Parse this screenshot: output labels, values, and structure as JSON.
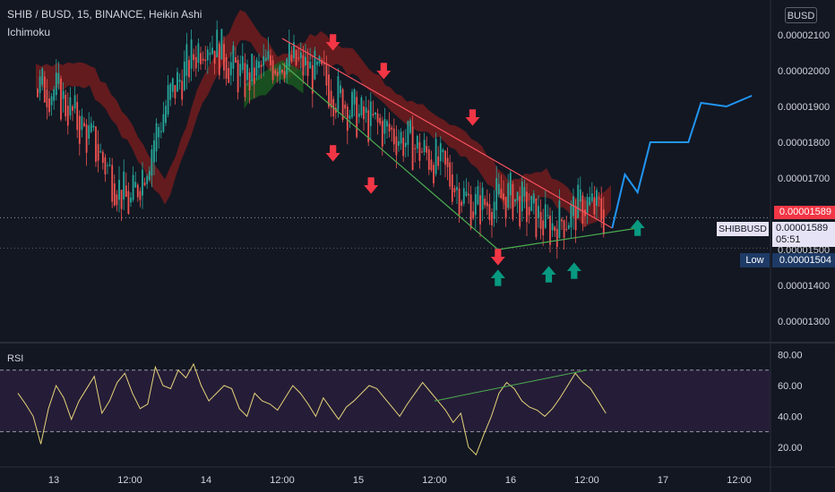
{
  "header": {
    "symbol_line": "SHIB / BUSD, 15, BINANCE, Heikin Ashi",
    "indicator": "Ichimoku",
    "currency_button": "BUSD",
    "rsi_label": "RSI"
  },
  "price_tags": {
    "current_red": "0.00001589",
    "symbol": "SHIBBUSD",
    "last": "0.00001589",
    "countdown": "05:51",
    "low_label": "Low",
    "low_value": "0.00001504"
  },
  "chart_data": [
    {
      "type": "line",
      "subtype": "heikin-ashi-candlestick",
      "y_axis_labels": [
        "0.00002100",
        "0.00002000",
        "0.00001900",
        "0.00001800",
        "0.00001700",
        "0.00001600",
        "0.00001500",
        "0.00001400",
        "0.00001300"
      ],
      "x_axis_labels": [
        "13",
        "12:00",
        "14",
        "12:00",
        "15",
        "12:00",
        "16",
        "12:00",
        "17",
        "12:00"
      ],
      "ylim": [
        1.28e-05,
        2.16e-05
      ],
      "current_price": 1.589e-05,
      "low_price": 1.504e-05,
      "price_path": [
        [
          "13 00:00",
          1.95e-05
        ],
        [
          "13 06:00",
          1.8e-05
        ],
        [
          "13 12:00",
          1.62e-05
        ],
        [
          "13 18:00",
          1.92e-05
        ],
        [
          "14 00:00",
          2.1e-05
        ],
        [
          "14 06:00",
          1.97e-05
        ],
        [
          "14 12:00",
          2.04e-05
        ],
        [
          "14 18:00",
          1.98e-05
        ],
        [
          "15 00:00",
          1.87e-05
        ],
        [
          "15 06:00",
          1.82e-05
        ],
        [
          "15 12:00",
          1.75e-05
        ],
        [
          "15 18:00",
          1.62e-05
        ],
        [
          "16 00:00",
          1.65e-05
        ],
        [
          "16 06:00",
          1.56e-05
        ],
        [
          "16 12:00",
          1.63e-05
        ],
        [
          "16 15:00",
          1.59e-05
        ]
      ],
      "projection_path": [
        [
          "16 16:00",
          1.56e-05
        ],
        [
          "16 18:00",
          1.71e-05
        ],
        [
          "16 20:00",
          1.66e-05
        ],
        [
          "16 22:00",
          1.8e-05
        ],
        [
          "17 04:00",
          1.8e-05
        ],
        [
          "17 06:00",
          1.91e-05
        ],
        [
          "17 10:00",
          1.9e-05
        ],
        [
          "17 14:00",
          1.93e-05
        ]
      ],
      "trendlines": [
        {
          "name": "upper",
          "color": "#f7525f",
          "from": [
            "14 12:00",
            2.09e-05
          ],
          "to": [
            "16 16:00",
            1.56e-05
          ]
        },
        {
          "name": "lower",
          "color": "#4caf50",
          "from": [
            "14 12:00",
            2.02e-05
          ],
          "to": [
            "15 22:00",
            1.5e-05
          ]
        },
        {
          "name": "support",
          "color": "#4caf50",
          "from": [
            "15 22:00",
            1.5e-05
          ],
          "to": [
            "16 20:00",
            1.56e-05
          ]
        }
      ],
      "down_arrows": [
        [
          "14 20:00",
          2.08e-05
        ],
        [
          "15 04:00",
          2e-05
        ],
        [
          "15 18:00",
          1.87e-05
        ],
        [
          "14 20:00",
          1.77e-05
        ],
        [
          "15 02:00",
          1.68e-05
        ],
        [
          "15 22:00",
          1.48e-05
        ]
      ],
      "up_arrows": [
        [
          "15 22:00",
          1.42e-05
        ],
        [
          "16 06:00",
          1.43e-05
        ],
        [
          "16 10:00",
          1.44e-05
        ],
        [
          "16 20:00",
          1.56e-05
        ]
      ],
      "colors": {
        "bull": "#26a69a",
        "bear": "#ef5350",
        "cloud_bear": "#7f1d1d",
        "cloud_bull": "#1b5e20",
        "projection": "#2196f3",
        "down_arrow": "#f23645",
        "up_arrow": "#089981"
      }
    },
    {
      "type": "line",
      "name": "RSI",
      "ylim": [
        10,
        85
      ],
      "y_axis_labels": [
        "80.00",
        "60.00",
        "40.00",
        "20.00"
      ],
      "bands": [
        30,
        70
      ],
      "divergence_line": {
        "from": [
          "15 12:00",
          50
        ],
        "to": [
          "16 12:00",
          70
        ]
      },
      "values": [
        55,
        48,
        40,
        22,
        45,
        60,
        52,
        38,
        50,
        58,
        66,
        42,
        50,
        62,
        68,
        55,
        45,
        48,
        72,
        60,
        58,
        70,
        65,
        74,
        60,
        50,
        55,
        60,
        58,
        45,
        40,
        55,
        50,
        48,
        44,
        52,
        60,
        55,
        48,
        40,
        52,
        45,
        38,
        46,
        50,
        55,
        60,
        58,
        52,
        46,
        40,
        48,
        55,
        62,
        56,
        50,
        44,
        36,
        42,
        20,
        15,
        28,
        40,
        55,
        62,
        58,
        50,
        46,
        44,
        40,
        45,
        52,
        60,
        68,
        62,
        58,
        50,
        42
      ],
      "colors": {
        "line": "#e6d37a",
        "band_fill": "#2a1f3d"
      }
    }
  ]
}
